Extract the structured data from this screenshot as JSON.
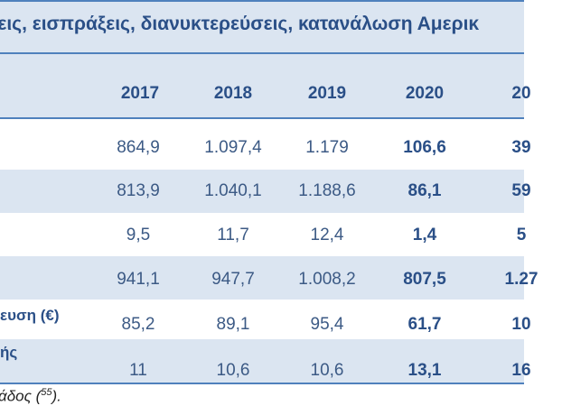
{
  "table": {
    "title": "ξεις, εισπράξεις, διανυκτερεύσεις, κατανάλωση Αμερικ",
    "years": [
      "2017",
      "2018",
      "2019",
      "2020",
      "20"
    ],
    "rows": [
      {
        "label": "",
        "values": [
          "864,9",
          "1.097,4",
          "1.179",
          "106,6",
          "39"
        ]
      },
      {
        "label": "",
        "values": [
          "813,9",
          "1.040,1",
          "1.188,6",
          "86,1",
          "59"
        ]
      },
      {
        "label": "",
        "values": [
          "9,5",
          "11,7",
          "12,4",
          "1,4",
          "5"
        ]
      },
      {
        "label": "",
        "values": [
          "941,1",
          "947,7",
          "1.008,2",
          "807,5",
          "1.27"
        ]
      },
      {
        "label": "ευση (€)",
        "values": [
          "85,2",
          "89,1",
          "95,4",
          "61,7",
          "10"
        ]
      },
      {
        "label": "ής",
        "values": [
          "11",
          "10,6",
          "10,6",
          "13,1",
          "16"
        ]
      }
    ]
  },
  "footnote": {
    "text": "άδος (",
    "ref": "55",
    "tail": ")."
  },
  "colors": {
    "accent": "#4f81bd",
    "band": "#dbe5f1",
    "heading_text": "#2a4f87",
    "value_text": "#3c5a85"
  }
}
